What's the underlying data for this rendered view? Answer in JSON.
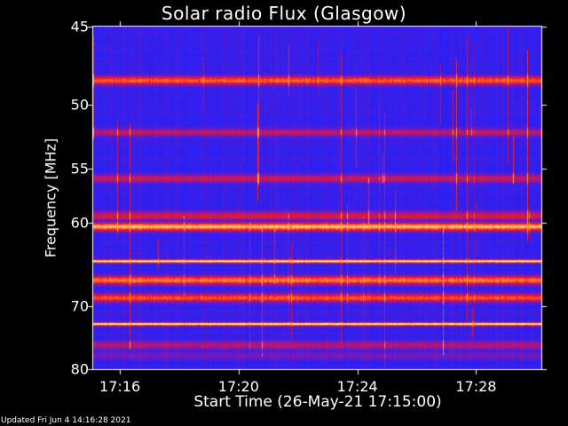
{
  "chart_data": {
    "type": "heatmap",
    "title": "Solar radio Flux (Glasgow)",
    "xlabel": "Start Time (26-May-21 17:15:00)",
    "ylabel": "Frequency [MHz]",
    "x_ticks": [
      "17:16",
      "17:20",
      "17:24",
      "17:28"
    ],
    "x_tick_minutes": [
      1,
      5,
      9,
      13
    ],
    "x_range_minutes": [
      0.1,
      15.2
    ],
    "y_ticks": [
      45,
      50,
      55,
      60,
      70,
      80
    ],
    "y_range": [
      45,
      80
    ],
    "y_scale": "reciprocal",
    "colormap": [
      "#1a22ff",
      "#7a18b8",
      "#ff1a10",
      "#ffff80"
    ],
    "bands": [
      {
        "freq": 48.3,
        "intensity": 0.75
      },
      {
        "freq": 52.0,
        "intensity": 0.45
      },
      {
        "freq": 55.8,
        "intensity": 0.5
      },
      {
        "freq": 59.3,
        "intensity": 0.55
      },
      {
        "freq": 60.4,
        "intensity": 0.85
      },
      {
        "freq": 64.2,
        "intensity": 1.0
      },
      {
        "freq": 66.5,
        "intensity": 0.78
      },
      {
        "freq": 68.8,
        "intensity": 0.7
      },
      {
        "freq": 72.5,
        "intensity": 1.0
      },
      {
        "freq": 75.8,
        "intensity": 0.45
      },
      {
        "freq": 77.5,
        "intensity": 0.3
      }
    ]
  },
  "footer": "Updated Fri Jun  4 14:16:28 2021"
}
